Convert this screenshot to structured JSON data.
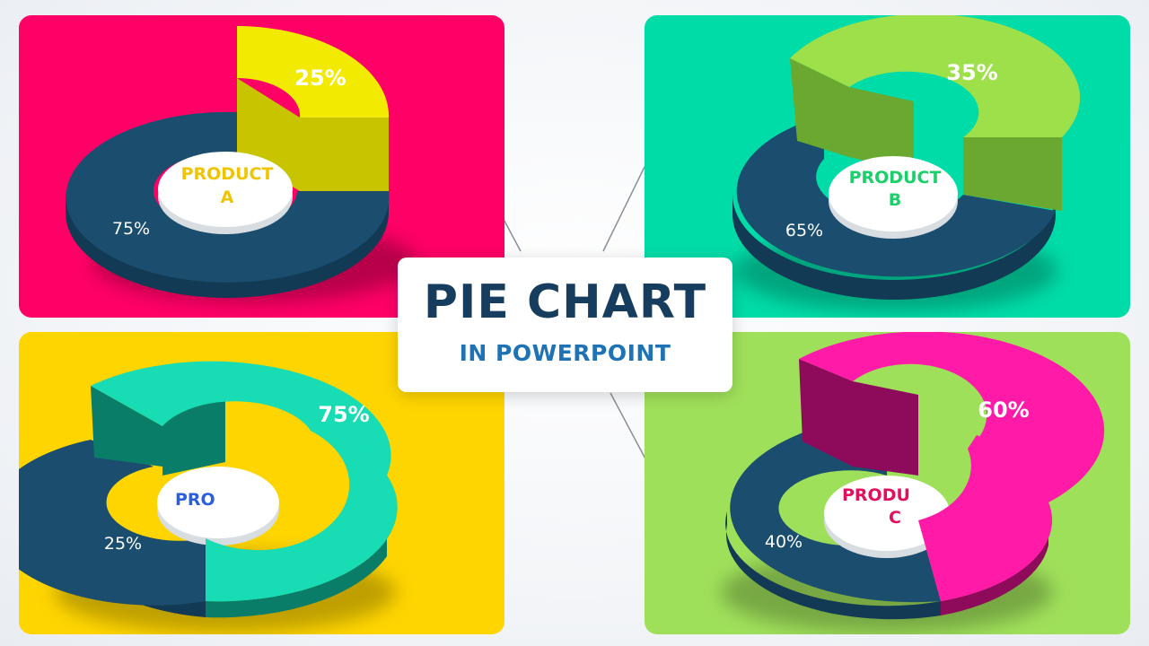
{
  "title": "PIE CHART",
  "subtitle": "IN POWERPOINT",
  "colors": {
    "dark_slice": "#1a4d6e",
    "dark_slice_side": "#123a54",
    "label_light": "#ffffff"
  },
  "chart_data": [
    {
      "type": "pie",
      "id": "a",
      "center_label": [
        "PRODUCT",
        "A"
      ],
      "panel_color": "#ff0066",
      "accent_color": "#f2ea00",
      "accent_side": "#c9c400",
      "center_text_color": "#f0c400",
      "slices": [
        {
          "label": "25%",
          "value": 25
        },
        {
          "label": "75%",
          "value": 75
        }
      ]
    },
    {
      "type": "pie",
      "id": "b",
      "center_label": [
        "PRODUCT",
        "B"
      ],
      "panel_color": "#00dca8",
      "accent_color": "#9ee04a",
      "accent_side": "#6aa830",
      "center_text_color": "#1bcf6a",
      "slices": [
        {
          "label": "35%",
          "value": 35
        },
        {
          "label": "65%",
          "value": 65
        }
      ]
    },
    {
      "type": "pie",
      "id": "d",
      "center_label": [
        "PRO",
        ""
      ],
      "panel_color": "#ffd500",
      "accent_color": "#17dcb4",
      "accent_side": "#0a7d68",
      "center_text_color": "#2b5fe0",
      "slices": [
        {
          "label": "75%",
          "value": 75
        },
        {
          "label": "25%",
          "value": 25
        }
      ]
    },
    {
      "type": "pie",
      "id": "c",
      "center_label": [
        "PRODU",
        "C"
      ],
      "panel_color": "#9fe05a",
      "accent_color": "#ff1aa8",
      "accent_side": "#8e0a5a",
      "center_text_color": "#e0105f",
      "slices": [
        {
          "label": "60%",
          "value": 60
        },
        {
          "label": "40%",
          "value": 40
        }
      ]
    }
  ]
}
